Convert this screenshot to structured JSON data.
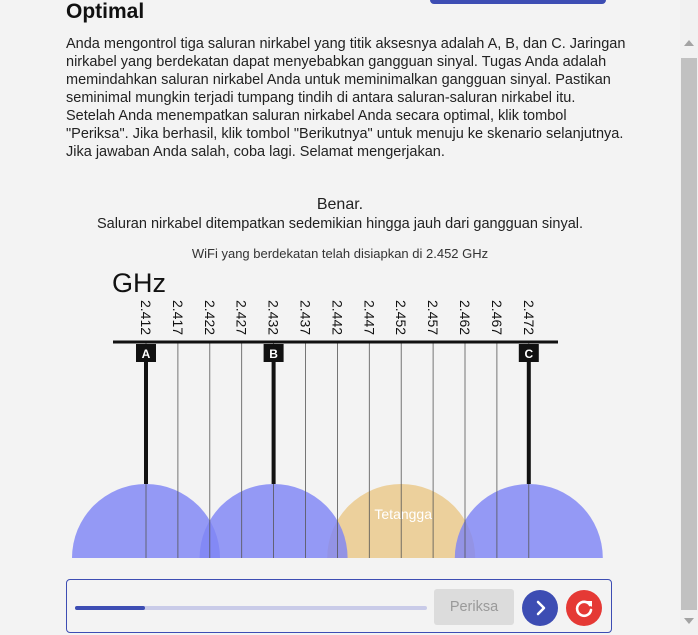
{
  "page": {
    "title": "Optimal",
    "instructions": "Anda mengontrol tiga saluran nirkabel yang titik aksesnya adalah A, B, dan C. Jaringan nirkabel yang berdekatan dapat menyebabkan gangguan sinyal. Tugas Anda adalah memindahkan saluran nirkabel Anda untuk meminimalkan gangguan sinyal. Pastikan seminimal mungkin terjadi tumpang tindih di antara saluran-saluran nirkabel itu. Setelah Anda menempatkan saluran nirkabel Anda secara optimal, klik tombol \"Periksa\". Jika berhasil, klik tombol \"Berikutnya\" untuk menuju ke skenario selanjutnya. Jika jawaban Anda salah, coba lagi. Selamat mengerjakan.",
    "result_title": "Benar.",
    "result_detail": "Saluran nirkabel ditempatkan sedemikian hingga jauh dari gangguan sinyal.",
    "info": "WiFi yang berdekatan telah disiapkan di 2.452 GHz"
  },
  "channel_chart": {
    "unit_label": "GHz",
    "frequencies": [
      "2.412",
      "2.417",
      "2.422",
      "2.427",
      "2.432",
      "2.437",
      "2.442",
      "2.447",
      "2.452",
      "2.457",
      "2.462",
      "2.467",
      "2.472"
    ],
    "access_points": [
      {
        "label": "A",
        "frequency": "2.412"
      },
      {
        "label": "B",
        "frequency": "2.432"
      },
      {
        "label": "C",
        "frequency": "2.472"
      }
    ],
    "neighbor": {
      "label": "Tetangga",
      "frequency": "2.452"
    },
    "colors": {
      "access_point": "#7f85f5",
      "neighbor": "#ecd09c",
      "bar": "#111111"
    }
  },
  "controls": {
    "check_label": "Periksa",
    "next_icon": "chevron-right-icon",
    "reset_icon": "refresh-icon",
    "progress": 0.2,
    "accent": "#3d4db3",
    "reset_color": "#e53935"
  }
}
